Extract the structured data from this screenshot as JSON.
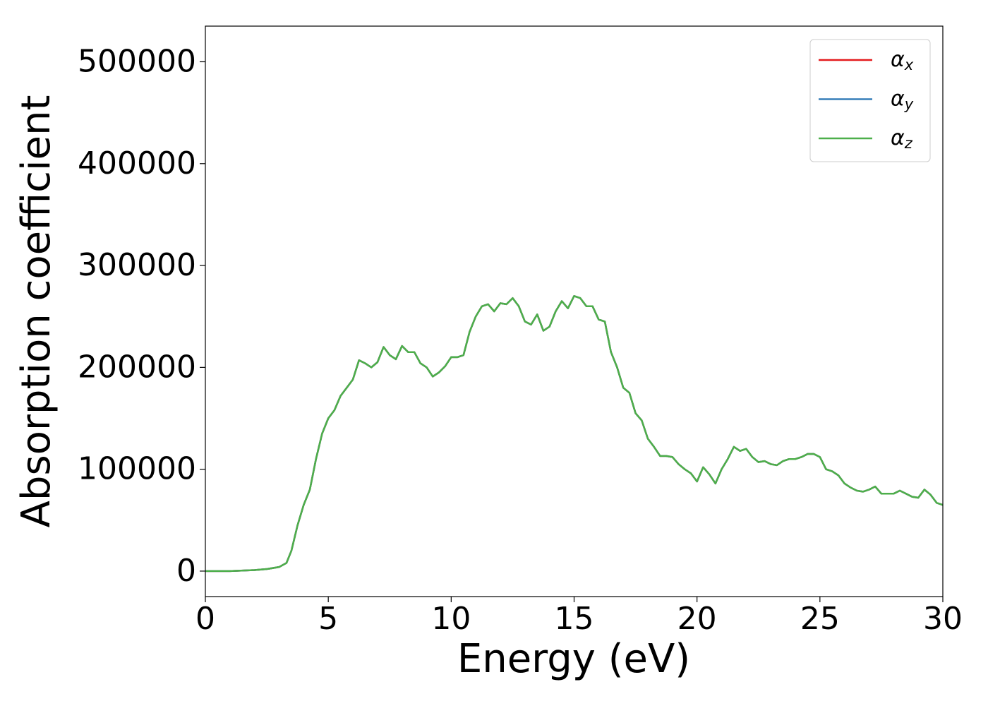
{
  "chart_data": {
    "type": "line",
    "xlabel": "Energy (eV)",
    "ylabel": "Absorption coefficient",
    "x": [
      0,
      1,
      2,
      2.5,
      3,
      3.3,
      3.5,
      3.75,
      4,
      4.25,
      4.5,
      4.75,
      5,
      5.25,
      5.5,
      5.75,
      6,
      6.25,
      6.5,
      6.75,
      7,
      7.25,
      7.5,
      7.75,
      8,
      8.25,
      8.5,
      8.75,
      9,
      9.25,
      9.5,
      9.75,
      10,
      10.25,
      10.5,
      10.75,
      11,
      11.25,
      11.5,
      11.75,
      12,
      12.25,
      12.5,
      12.75,
      13,
      13.25,
      13.5,
      13.75,
      14,
      14.25,
      14.5,
      14.75,
      15,
      15.25,
      15.5,
      15.75,
      16,
      16.25,
      16.5,
      16.75,
      17,
      17.25,
      17.5,
      17.75,
      18,
      18.25,
      18.5,
      18.75,
      19,
      19.25,
      19.5,
      19.75,
      20,
      20.25,
      20.5,
      20.75,
      21,
      21.25,
      21.5,
      21.75,
      22,
      22.25,
      22.5,
      22.75,
      23,
      23.25,
      23.5,
      23.75,
      24,
      24.25,
      24.5,
      24.75,
      25,
      25.25,
      25.5,
      25.75,
      26,
      26.25,
      26.5,
      26.75,
      27,
      27.25,
      27.5,
      27.75,
      28,
      28.25,
      28.5,
      28.75,
      29,
      29.25,
      29.5,
      29.75,
      30
    ],
    "series": [
      {
        "name": "αx",
        "color": "#e41a1c",
        "values": [
          0,
          0,
          1000,
          2000,
          4000,
          8000,
          20000,
          45000,
          65000,
          80000,
          110000,
          135000,
          150000,
          158000,
          172000,
          180000,
          188000,
          207000,
          204000,
          200000,
          205000,
          220000,
          212000,
          208000,
          221000,
          215000,
          215000,
          204000,
          200000,
          191000,
          195000,
          201000,
          210000,
          210000,
          212000,
          235000,
          250000,
          260000,
          262000,
          255000,
          263000,
          262000,
          268000,
          260000,
          245000,
          242000,
          252000,
          236000,
          240000,
          255000,
          265000,
          258000,
          270000,
          268000,
          260000,
          260000,
          247000,
          245000,
          215000,
          200000,
          180000,
          175000,
          155000,
          148000,
          130000,
          122000,
          113000,
          113000,
          112000,
          105000,
          100000,
          96000,
          88000,
          102000,
          95000,
          86000,
          100000,
          110000,
          122000,
          118000,
          120000,
          112000,
          107000,
          108000,
          105000,
          104000,
          108000,
          110000,
          110000,
          112000,
          115000,
          115000,
          112000,
          100000,
          98000,
          94000,
          86000,
          82000,
          79000,
          78000,
          80000,
          83000,
          76000,
          76000,
          76000,
          79000,
          76000,
          73000,
          72000,
          80000,
          75000,
          67000,
          65000
        ]
      },
      {
        "name": "αy",
        "color": "#377eb8",
        "values": [
          0,
          0,
          1000,
          2000,
          4000,
          8000,
          20000,
          45000,
          65000,
          80000,
          110000,
          135000,
          150000,
          158000,
          172000,
          180000,
          188000,
          207000,
          204000,
          200000,
          205000,
          220000,
          212000,
          208000,
          221000,
          215000,
          215000,
          204000,
          200000,
          191000,
          195000,
          201000,
          210000,
          210000,
          212000,
          235000,
          250000,
          260000,
          262000,
          255000,
          263000,
          262000,
          268000,
          260000,
          245000,
          242000,
          252000,
          236000,
          240000,
          255000,
          265000,
          258000,
          270000,
          268000,
          260000,
          260000,
          247000,
          245000,
          215000,
          200000,
          180000,
          175000,
          155000,
          148000,
          130000,
          122000,
          113000,
          113000,
          112000,
          105000,
          100000,
          96000,
          88000,
          102000,
          95000,
          86000,
          100000,
          110000,
          122000,
          118000,
          120000,
          112000,
          107000,
          108000,
          105000,
          104000,
          108000,
          110000,
          110000,
          112000,
          115000,
          115000,
          112000,
          100000,
          98000,
          94000,
          86000,
          82000,
          79000,
          78000,
          80000,
          83000,
          76000,
          76000,
          76000,
          79000,
          76000,
          73000,
          72000,
          80000,
          75000,
          67000,
          65000
        ]
      },
      {
        "name": "αz",
        "color": "#4daf4a",
        "values": [
          0,
          0,
          1000,
          2000,
          4000,
          8000,
          20000,
          45000,
          65000,
          80000,
          110000,
          135000,
          150000,
          158000,
          172000,
          180000,
          188000,
          207000,
          204000,
          200000,
          205000,
          220000,
          212000,
          208000,
          221000,
          215000,
          215000,
          204000,
          200000,
          191000,
          195000,
          201000,
          210000,
          210000,
          212000,
          235000,
          250000,
          260000,
          262000,
          255000,
          263000,
          262000,
          268000,
          260000,
          245000,
          242000,
          252000,
          236000,
          240000,
          255000,
          265000,
          258000,
          270000,
          268000,
          260000,
          260000,
          247000,
          245000,
          215000,
          200000,
          180000,
          175000,
          155000,
          148000,
          130000,
          122000,
          113000,
          113000,
          112000,
          105000,
          100000,
          96000,
          88000,
          102000,
          95000,
          86000,
          100000,
          110000,
          122000,
          118000,
          120000,
          112000,
          107000,
          108000,
          105000,
          104000,
          108000,
          110000,
          110000,
          112000,
          115000,
          115000,
          112000,
          100000,
          98000,
          94000,
          86000,
          82000,
          79000,
          78000,
          80000,
          83000,
          76000,
          76000,
          76000,
          79000,
          76000,
          73000,
          72000,
          80000,
          75000,
          67000,
          65000
        ]
      }
    ],
    "xlim": [
      0,
      30
    ],
    "xticks": [
      0,
      5,
      10,
      15,
      20,
      25,
      30
    ],
    "ylim": [
      -25000,
      535000
    ],
    "yticks": [
      0,
      100000,
      200000,
      300000,
      400000,
      500000
    ],
    "grid": false,
    "legend": "upper right"
  }
}
